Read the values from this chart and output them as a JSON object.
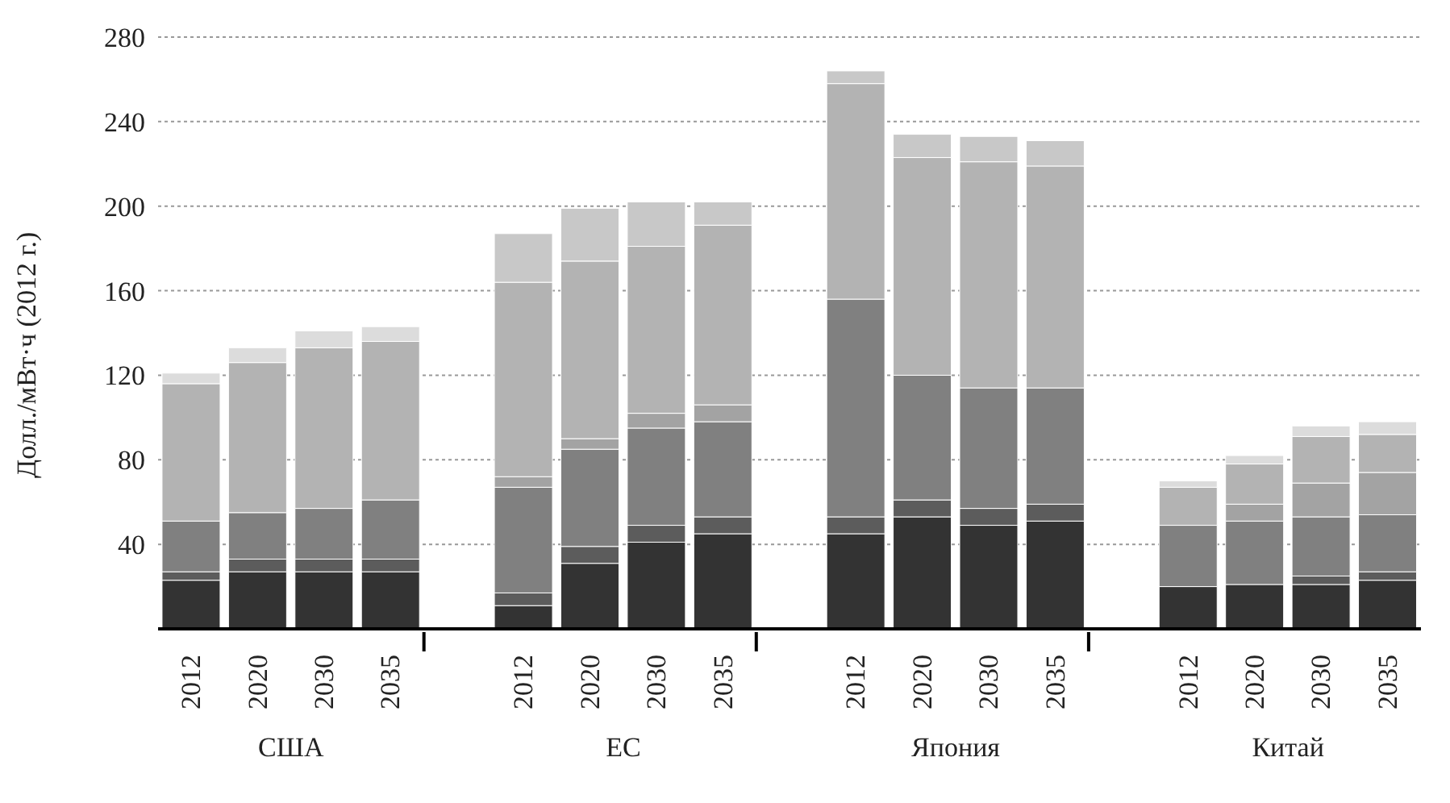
{
  "chart_data": {
    "type": "bar",
    "ylabel": "Долл./мВт·ч (2012 г.)",
    "categories": [
      "2012",
      "2020",
      "2030",
      "2035",
      null,
      "2012",
      "2020",
      "2030",
      "2035",
      null,
      "2012",
      "2020",
      "2030",
      "2035",
      null,
      "2012",
      "2020",
      "2030",
      "2035"
    ],
    "annotations": [
      "США",
      "ЕС",
      "Япония",
      "Китай"
    ],
    "stacked": true,
    "series": [
      {
        "color": "#333333",
        "values": [
          23,
          27,
          27,
          27,
          null,
          11,
          31,
          41,
          45,
          null,
          45,
          53,
          49,
          51,
          null,
          20,
          21,
          21,
          23
        ]
      },
      {
        "color": "#5c5c5c",
        "values": [
          4,
          6,
          6,
          6,
          null,
          6,
          8,
          8,
          8,
          null,
          8,
          8,
          8,
          8,
          null,
          null,
          null,
          4,
          4
        ]
      },
      {
        "color": "#808080",
        "values": [
          24,
          22,
          24,
          28,
          null,
          50,
          46,
          46,
          45,
          null,
          103,
          59,
          57,
          55,
          null,
          29,
          30,
          28,
          27
        ]
      },
      {
        "color": "#a3a3a3",
        "values": [
          null,
          null,
          null,
          null,
          null,
          5,
          5,
          7,
          8,
          null,
          null,
          null,
          null,
          null,
          null,
          null,
          8,
          16,
          20
        ]
      },
      {
        "color": "#b3b3b3",
        "values": [
          65,
          71,
          76,
          75,
          null,
          92,
          84,
          79,
          85,
          null,
          102,
          103,
          107,
          105,
          null,
          18,
          19,
          22,
          18
        ]
      },
      {
        "color": "#c8c8c8",
        "values": [
          null,
          null,
          null,
          null,
          null,
          23,
          25,
          21,
          11,
          null,
          6,
          11,
          12,
          12,
          null,
          null,
          null,
          null,
          null
        ]
      },
      {
        "color": "#dcdcdc",
        "values": [
          5,
          7,
          8,
          7,
          null,
          null,
          null,
          null,
          null,
          null,
          null,
          null,
          null,
          null,
          null,
          3,
          4,
          5,
          6
        ]
      }
    ],
    "ylim": [
      0,
      280
    ],
    "yticks": [
      40,
      80,
      120,
      160,
      200,
      240,
      280
    ],
    "grid": "y",
    "legend": false
  }
}
